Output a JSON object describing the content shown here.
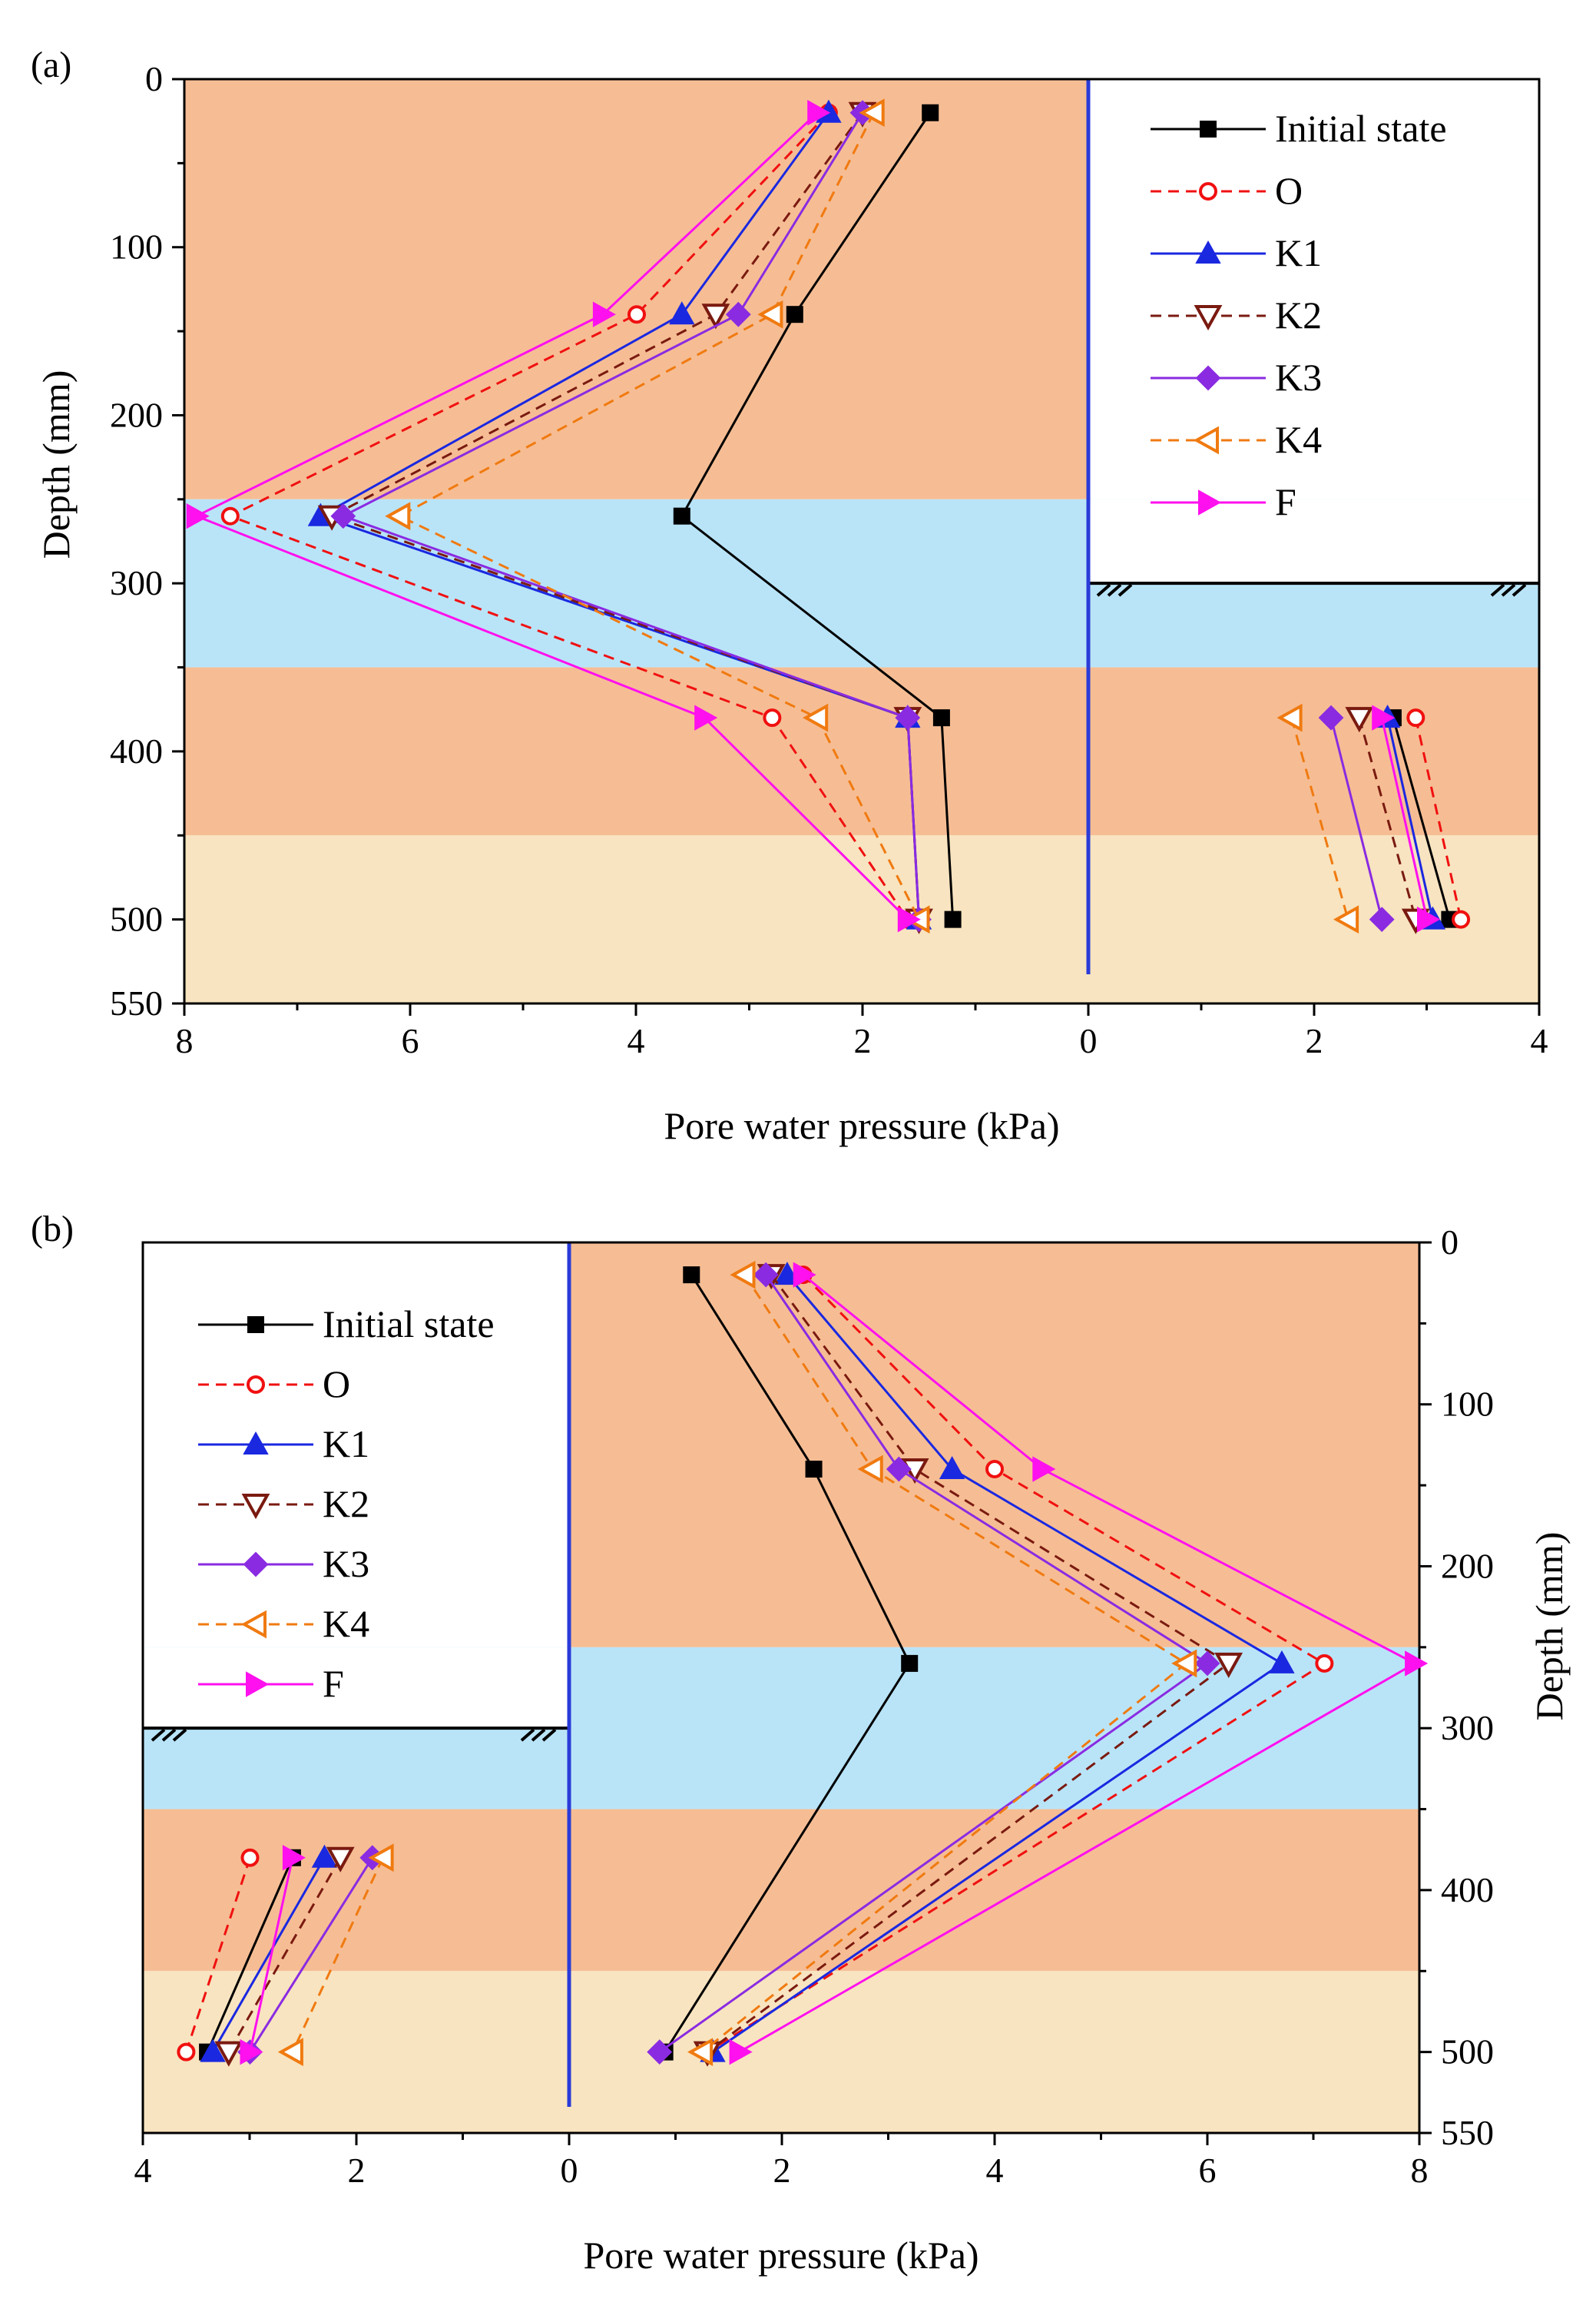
{
  "chart_data": [
    {
      "type": "line",
      "panel_label": "(a)",
      "xlabel": "Pore water pressure (kPa)",
      "ylabel": "Depth (mm)",
      "ylim": [
        0,
        550
      ],
      "y_ticks": [
        "0",
        "100",
        "200",
        "300",
        "400",
        "500",
        "550"
      ],
      "x_ticks": [
        "8",
        "6",
        "4",
        "2",
        "0",
        "2",
        "4"
      ],
      "wall_at_depth_mm": 300,
      "colors": {
        "layer_clay": "#f6bd94",
        "layer_water": "#b9e4f8",
        "layer_sand": "#f8e4c0",
        "wall": "#2a3bd8"
      },
      "legend": [
        "Initial state",
        "O",
        "K1",
        "K2",
        "K3",
        "K4",
        "F"
      ],
      "series": [
        {
          "name": "Initial state",
          "color": "#000000",
          "dash": false,
          "marker": "square",
          "retained": [
            [
              1.4,
              20
            ],
            [
              2.6,
              140
            ],
            [
              3.6,
              260
            ],
            [
              1.3,
              380
            ],
            [
              1.2,
              500
            ]
          ],
          "excavated": [
            [
              2.7,
              380
            ],
            [
              3.2,
              500
            ]
          ]
        },
        {
          "name": "O",
          "color": "#f01010",
          "dash": true,
          "marker": "circle-open",
          "retained": [
            [
              2.3,
              20
            ],
            [
              4.0,
              140
            ],
            [
              7.6,
              260
            ],
            [
              2.8,
              380
            ],
            [
              1.6,
              500
            ]
          ],
          "excavated": [
            [
              2.9,
              380
            ],
            [
              3.3,
              500
            ]
          ]
        },
        {
          "name": "K1",
          "color": "#1a28e0",
          "dash": false,
          "marker": "triangle-up",
          "retained": [
            [
              2.3,
              20
            ],
            [
              3.6,
              140
            ],
            [
              6.8,
              260
            ],
            [
              1.6,
              380
            ],
            [
              1.5,
              500
            ]
          ],
          "excavated": [
            [
              2.65,
              380
            ],
            [
              3.05,
              500
            ]
          ]
        },
        {
          "name": "K2",
          "color": "#7a1a10",
          "dash": true,
          "marker": "triangle-down-open",
          "retained": [
            [
              2.0,
              20
            ],
            [
              3.3,
              140
            ],
            [
              6.7,
              260
            ],
            [
              1.6,
              380
            ],
            [
              1.5,
              500
            ]
          ],
          "excavated": [
            [
              2.4,
              380
            ],
            [
              2.9,
              500
            ]
          ]
        },
        {
          "name": "K3",
          "color": "#8a2be2",
          "dash": false,
          "marker": "diamond",
          "retained": [
            [
              2.0,
              20
            ],
            [
              3.1,
              140
            ],
            [
              6.6,
              260
            ],
            [
              1.6,
              380
            ],
            [
              1.5,
              500
            ]
          ],
          "excavated": [
            [
              2.15,
              380
            ],
            [
              2.6,
              500
            ]
          ]
        },
        {
          "name": "K4",
          "color": "#f07a10",
          "dash": true,
          "marker": "triangle-left-open",
          "retained": [
            [
              1.9,
              20
            ],
            [
              2.8,
              140
            ],
            [
              6.1,
              260
            ],
            [
              2.4,
              380
            ],
            [
              1.5,
              500
            ]
          ],
          "excavated": [
            [
              1.8,
              380
            ],
            [
              2.3,
              500
            ]
          ]
        },
        {
          "name": "F",
          "color": "#ff10ee",
          "dash": false,
          "marker": "triangle-right",
          "retained": [
            [
              2.4,
              20
            ],
            [
              4.3,
              140
            ],
            [
              7.9,
              260
            ],
            [
              3.4,
              380
            ],
            [
              1.6,
              500
            ]
          ],
          "excavated": [
            [
              2.6,
              380
            ],
            [
              3.0,
              500
            ]
          ]
        }
      ]
    },
    {
      "type": "line",
      "panel_label": "(b)",
      "xlabel": "Pore water pressure (kPa)",
      "ylabel": "Depth (mm)",
      "ylim": [
        0,
        550
      ],
      "y_ticks": [
        "0",
        "100",
        "200",
        "300",
        "400",
        "500",
        "550"
      ],
      "x_ticks": [
        "4",
        "2",
        "0",
        "2",
        "4",
        "6",
        "8"
      ],
      "wall_at_depth_mm": 300,
      "colors": {
        "layer_clay": "#f6bd94",
        "layer_water": "#b9e4f8",
        "layer_sand": "#f8e4c0",
        "wall": "#2a3bd8"
      },
      "legend": [
        "Initial state",
        "O",
        "K1",
        "K2",
        "K3",
        "K4",
        "F"
      ],
      "series": [
        {
          "name": "Initial state",
          "color": "#000000",
          "dash": false,
          "marker": "square",
          "retained": [
            [
              1.15,
              20
            ],
            [
              2.3,
              140
            ],
            [
              3.2,
              260
            ],
            [
              0.9,
              500
            ]
          ],
          "excavated": [
            [
              2.6,
              380
            ],
            [
              3.4,
              500
            ]
          ]
        },
        {
          "name": "O",
          "color": "#f01010",
          "dash": true,
          "marker": "circle-open",
          "retained": [
            [
              2.2,
              20
            ],
            [
              4.0,
              140
            ],
            [
              7.1,
              260
            ],
            [
              1.3,
              500
            ]
          ],
          "excavated": [
            [
              3.0,
              380
            ],
            [
              3.6,
              500
            ]
          ]
        },
        {
          "name": "K1",
          "color": "#1a28e0",
          "dash": false,
          "marker": "triangle-up",
          "retained": [
            [
              2.05,
              20
            ],
            [
              3.6,
              140
            ],
            [
              6.7,
              260
            ],
            [
              1.35,
              500
            ]
          ],
          "excavated": [
            [
              2.3,
              380
            ],
            [
              3.35,
              500
            ]
          ]
        },
        {
          "name": "K2",
          "color": "#7a1a10",
          "dash": true,
          "marker": "triangle-down-open",
          "retained": [
            [
              1.9,
              20
            ],
            [
              3.25,
              140
            ],
            [
              6.2,
              260
            ],
            [
              1.3,
              500
            ]
          ],
          "excavated": [
            [
              2.15,
              380
            ],
            [
              3.2,
              500
            ]
          ]
        },
        {
          "name": "K3",
          "color": "#8a2be2",
          "dash": false,
          "marker": "diamond",
          "retained": [
            [
              1.85,
              20
            ],
            [
              3.1,
              140
            ],
            [
              6.0,
              260
            ],
            [
              0.85,
              500
            ]
          ],
          "excavated": [
            [
              1.85,
              380
            ],
            [
              3.0,
              500
            ]
          ]
        },
        {
          "name": "K4",
          "color": "#f07a10",
          "dash": true,
          "marker": "triangle-left-open",
          "retained": [
            [
              1.65,
              20
            ],
            [
              2.85,
              140
            ],
            [
              5.8,
              260
            ],
            [
              1.25,
              500
            ]
          ],
          "excavated": [
            [
              1.75,
              380
            ],
            [
              2.6,
              500
            ]
          ]
        },
        {
          "name": "F",
          "color": "#ff10ee",
          "dash": false,
          "marker": "triangle-right",
          "retained": [
            [
              2.2,
              20
            ],
            [
              4.45,
              140
            ],
            [
              7.95,
              260
            ],
            [
              1.6,
              500
            ]
          ],
          "excavated": [
            [
              2.6,
              380
            ],
            [
              3.0,
              500
            ]
          ]
        }
      ]
    }
  ]
}
